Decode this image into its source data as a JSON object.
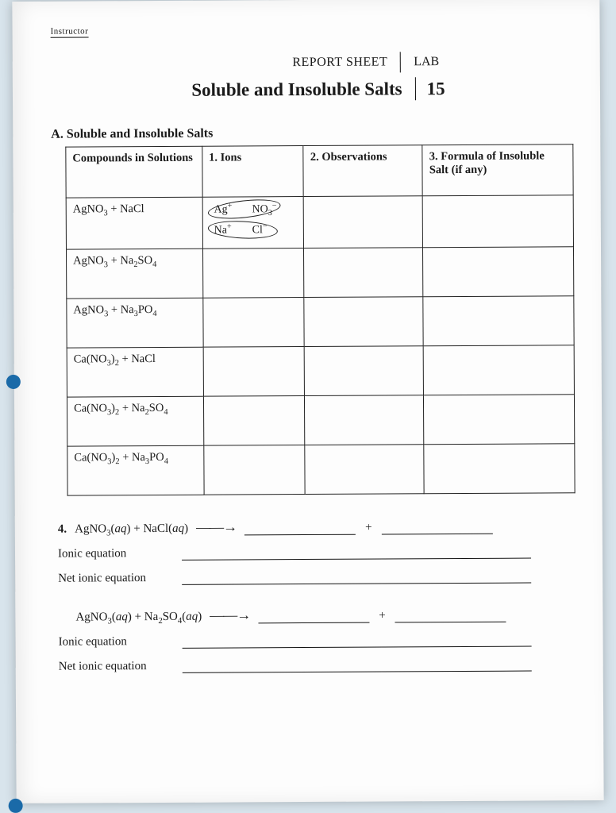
{
  "cutoff_text": "Instructor",
  "header": {
    "report_sheet": "REPORT SHEET",
    "lab_label": "LAB",
    "title": "Soluble and Insoluble Salts",
    "lab_number": "15"
  },
  "section_a": {
    "heading": "A.  Soluble and Insoluble Salts",
    "columns": {
      "c0": "Compounds in Solutions",
      "c1": "1. Ions",
      "c2": "2. Observations",
      "c3": "3. Formula of Insoluble Salt (if any)"
    },
    "rows": [
      {
        "compound_html": "AgNO<sub>3</sub> + NaCl",
        "has_ions_art": true
      },
      {
        "compound_html": "AgNO<sub>3</sub> + Na<sub>2</sub>SO<sub>4</sub>",
        "has_ions_art": false
      },
      {
        "compound_html": "AgNO<sub>3</sub> + Na<sub>3</sub>PO<sub>4</sub>",
        "has_ions_art": false
      },
      {
        "compound_html": "Ca(NO<sub>3</sub>)<sub>2</sub> + NaCl",
        "has_ions_art": false
      },
      {
        "compound_html": "Ca(NO<sub>3</sub>)<sub>2</sub> + Na<sub>2</sub>SO<sub>4</sub>",
        "has_ions_art": false
      },
      {
        "compound_html": "Ca(NO<sub>3</sub>)<sub>2</sub> + Na<sub>3</sub>PO<sub>4</sub>",
        "has_ions_art": false
      }
    ],
    "ions_art": {
      "ag": "Ag<sup>+</sup>",
      "no3": "NO<sub>3</sub><sup>−</sup>",
      "na": "Na<sup>+</sup>",
      "cl": "Cl<sup>−</sup>"
    }
  },
  "q4": {
    "tag": "4.",
    "eq1_html": "AgNO<sub>3</sub>(<i>aq</i>) + NaCl(<i>aq</i>)",
    "eq2_html": "AgNO<sub>3</sub>(<i>aq</i>) + Na<sub>2</sub>SO<sub>4</sub>(<i>aq</i>)",
    "ionic_label": "Ionic equation",
    "net_ionic_label": "Net ionic equation",
    "plus": "+",
    "arrow": "——→"
  },
  "colors": {
    "page_bg": "#fdfdfd",
    "body_bg": "#d8e4ec",
    "ink": "#1a1a1a",
    "binder_hole": "#1a6aa8"
  }
}
